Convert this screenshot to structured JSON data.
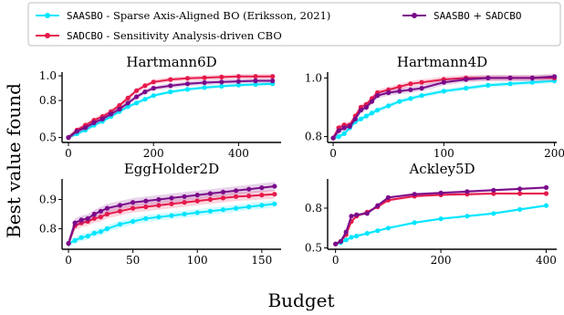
{
  "figure": {
    "ylabel": "Best value found",
    "xlabel": "Budget"
  },
  "legend": {
    "placement": "top",
    "entries": [
      {
        "series": "SAASBO",
        "code": "SAASBO",
        "text": " - Sparse Axis-Aligned BO (Eriksson, 2021)",
        "color": "#00e5ff"
      },
      {
        "series": "SADCBO",
        "code": "SADCBO",
        "text": " - Sensitivity Analysis-driven CBO",
        "color": "#e6194b"
      },
      {
        "series": "SAASBO + SADCBO",
        "code": "SAASBO",
        "text": " + ",
        "code2": "SADCBO",
        "color": "#7a0a8a"
      }
    ]
  },
  "chart_data": [
    {
      "type": "line",
      "title": "Hartmann6D",
      "xlim": [
        -15,
        500
      ],
      "ylim": [
        0.46,
        1.03
      ],
      "xticks": [
        0,
        200,
        400
      ],
      "yticks": [
        0.5,
        0.8,
        1.0
      ],
      "ytick_labels": [
        "0.5",
        "0.8",
        "1.0"
      ],
      "x": [
        0,
        20,
        40,
        60,
        80,
        100,
        120,
        140,
        160,
        180,
        200,
        240,
        280,
        320,
        360,
        400,
        440,
        480
      ],
      "series": [
        {
          "name": "SAASBO",
          "color": "#00e5ff",
          "values": [
            0.5,
            0.53,
            0.56,
            0.6,
            0.63,
            0.67,
            0.71,
            0.75,
            0.78,
            0.81,
            0.84,
            0.87,
            0.89,
            0.905,
            0.915,
            0.925,
            0.93,
            0.935
          ],
          "band": 0.015
        },
        {
          "name": "SADCBO",
          "color": "#e6194b",
          "values": [
            0.5,
            0.56,
            0.6,
            0.64,
            0.67,
            0.71,
            0.76,
            0.82,
            0.88,
            0.92,
            0.95,
            0.97,
            0.98,
            0.985,
            0.99,
            0.995,
            0.995,
            0.995
          ],
          "band": 0.02
        },
        {
          "name": "SAASBO + SADCBO",
          "color": "#7a0a8a",
          "values": [
            0.5,
            0.55,
            0.58,
            0.62,
            0.65,
            0.69,
            0.73,
            0.78,
            0.83,
            0.87,
            0.9,
            0.92,
            0.935,
            0.945,
            0.95,
            0.955,
            0.96,
            0.96
          ],
          "band": 0.02
        }
      ]
    },
    {
      "type": "line",
      "title": "Hartmann4D",
      "xlim": [
        -5,
        202
      ],
      "ylim": [
        0.78,
        1.02
      ],
      "xticks": [
        0,
        100,
        200
      ],
      "yticks": [
        0.8,
        1.0
      ],
      "ytick_labels": [
        "0.8",
        "1.0"
      ],
      "x": [
        0,
        5,
        10,
        15,
        20,
        25,
        30,
        35,
        40,
        50,
        60,
        70,
        80,
        100,
        120,
        140,
        160,
        180,
        200
      ],
      "series": [
        {
          "name": "SAASBO",
          "color": "#00e5ff",
          "values": [
            0.795,
            0.8,
            0.81,
            0.83,
            0.85,
            0.86,
            0.87,
            0.88,
            0.89,
            0.905,
            0.92,
            0.93,
            0.94,
            0.955,
            0.965,
            0.975,
            0.98,
            0.985,
            0.99
          ],
          "band": 0.008
        },
        {
          "name": "SADCBO",
          "color": "#e6194b",
          "values": [
            0.795,
            0.83,
            0.84,
            0.84,
            0.87,
            0.9,
            0.91,
            0.93,
            0.95,
            0.96,
            0.97,
            0.98,
            0.985,
            0.995,
            1.0,
            1.0,
            1.0,
            1.0,
            1.0
          ],
          "band": 0.01
        },
        {
          "name": "SAASBO + SADCBO",
          "color": "#7a0a8a",
          "values": [
            0.795,
            0.82,
            0.83,
            0.835,
            0.86,
            0.89,
            0.9,
            0.92,
            0.94,
            0.95,
            0.955,
            0.96,
            0.965,
            0.985,
            0.995,
            1.0,
            1.0,
            1.0,
            1.005
          ],
          "band": 0.01
        }
      ]
    },
    {
      "type": "line",
      "title": "EggHolder2D",
      "xlim": [
        -5,
        165
      ],
      "ylim": [
        0.73,
        0.97
      ],
      "xticks": [
        0,
        50,
        100,
        150
      ],
      "yticks": [
        0.8,
        0.9
      ],
      "ytick_labels": [
        "0.8",
        "0.9"
      ],
      "x": [
        0,
        5,
        10,
        15,
        20,
        25,
        30,
        40,
        50,
        60,
        70,
        80,
        90,
        100,
        110,
        120,
        130,
        140,
        150,
        160
      ],
      "series": [
        {
          "name": "SAASBO",
          "color": "#00e5ff",
          "values": [
            0.75,
            0.76,
            0.77,
            0.775,
            0.785,
            0.79,
            0.8,
            0.815,
            0.825,
            0.835,
            0.84,
            0.845,
            0.85,
            0.855,
            0.86,
            0.865,
            0.87,
            0.875,
            0.88,
            0.885
          ],
          "band": 0.012
        },
        {
          "name": "SADCBO",
          "color": "#e6194b",
          "values": [
            0.75,
            0.81,
            0.82,
            0.825,
            0.835,
            0.84,
            0.85,
            0.86,
            0.87,
            0.875,
            0.88,
            0.885,
            0.89,
            0.895,
            0.9,
            0.905,
            0.91,
            0.912,
            0.915,
            0.918
          ],
          "band": 0.015
        },
        {
          "name": "SAASBO + SADCBO",
          "color": "#7a0a8a",
          "values": [
            0.75,
            0.82,
            0.83,
            0.835,
            0.85,
            0.86,
            0.87,
            0.88,
            0.89,
            0.895,
            0.9,
            0.905,
            0.91,
            0.915,
            0.92,
            0.925,
            0.93,
            0.935,
            0.94,
            0.945
          ],
          "band": 0.015
        }
      ]
    },
    {
      "type": "line",
      "title": "Ackley5D",
      "xlim": [
        -15,
        420
      ],
      "ylim": [
        0.49,
        1.02
      ],
      "xticks": [
        0,
        200,
        400
      ],
      "yticks": [
        0.5,
        0.8
      ],
      "ytick_labels": [
        "0.5",
        "0.8"
      ],
      "x": [
        0,
        10,
        20,
        30,
        40,
        60,
        80,
        100,
        150,
        200,
        250,
        300,
        350,
        400
      ],
      "series": [
        {
          "name": "SAASBO",
          "color": "#00e5ff",
          "values": [
            0.53,
            0.54,
            0.56,
            0.58,
            0.59,
            0.61,
            0.63,
            0.65,
            0.69,
            0.72,
            0.74,
            0.76,
            0.79,
            0.82
          ],
          "band": 0.01
        },
        {
          "name": "SADCBO",
          "color": "#e6194b",
          "values": [
            0.53,
            0.55,
            0.6,
            0.7,
            0.74,
            0.77,
            0.81,
            0.86,
            0.89,
            0.9,
            0.905,
            0.91,
            0.91,
            0.91
          ],
          "band": 0.01
        },
        {
          "name": "SAASBO + SADCBO",
          "color": "#7a0a8a",
          "values": [
            0.53,
            0.55,
            0.62,
            0.74,
            0.75,
            0.76,
            0.82,
            0.88,
            0.905,
            0.915,
            0.925,
            0.935,
            0.945,
            0.955
          ],
          "band": 0.01
        }
      ]
    }
  ]
}
